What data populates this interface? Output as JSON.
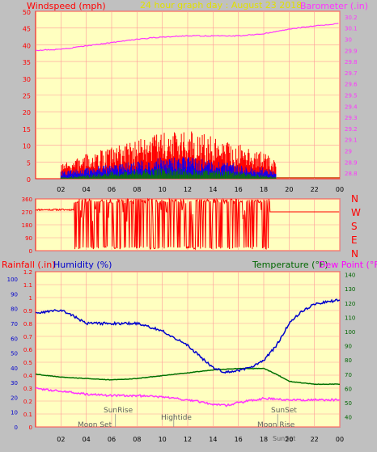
{
  "colors": {
    "bg": "#c0c0c0",
    "plot_bg": "#ffffc0",
    "grid": "#ff9999",
    "axis_frame": "#ff0000",
    "wind_gust": "#ff0000",
    "wind_avg": "#0000ff",
    "wind_low": "#008000",
    "barometer": "#ff33ff",
    "direction": "#ff0000",
    "humidity": "#0000cc",
    "temperature": "#007000",
    "dewpoint": "#ff33ff",
    "title": "#e0e000",
    "rain_label": "#ff0000",
    "humidity_label": "#0000cc",
    "temp_label": "#006600",
    "dew_label": "#ff00ff",
    "astro": "#606060"
  },
  "top": {
    "left_label": "Windspeed (mph)",
    "title": "24 hour graph day : August 23 2018",
    "right_label": "Barometer (.in)"
  },
  "middle": {
    "compass": [
      "N",
      "W",
      "S",
      "E",
      "N"
    ]
  },
  "bottom": {
    "rain_label": "Rainfall (.in)",
    "humidity_label": "Humidity (%)",
    "temp_label": "Temperature (°F)",
    "dew_label": "Dew Point (°F)"
  },
  "astro_events": {
    "moon_set_1": "Moon Set",
    "sunrise": "SunRise",
    "hightide": "Hightide",
    "sunset": "SunSet",
    "moon_rise": "Moon Rise",
    "sunset_2": "SunSet",
    "sunrise_hours": 6.3,
    "sunset_hours": 19.1,
    "hightide_hours": 10.9
  },
  "chart_data": [
    {
      "type": "line",
      "name": "wind-barometer",
      "x_ticks": [
        "02",
        "04",
        "06",
        "08",
        "10",
        "12",
        "14",
        "16",
        "18",
        "20",
        "22",
        "00"
      ],
      "y_left": {
        "label": "Windspeed (mph)",
        "ticks": [
          0,
          5,
          10,
          15,
          20,
          25,
          30,
          35,
          40,
          45,
          50
        ],
        "range": [
          0,
          50
        ]
      },
      "y_right": {
        "label": "Barometer (.in)",
        "ticks": [
          28.8,
          28.9,
          29,
          29.1,
          29.2,
          29.3,
          29.4,
          29.5,
          29.6,
          29.7,
          29.8,
          29.9,
          30,
          30.1,
          30.2
        ],
        "range": [
          28.75,
          30.25
        ]
      },
      "barometer": {
        "hours": [
          0,
          2,
          4,
          6,
          8,
          10,
          12,
          14,
          16,
          18,
          20,
          22,
          24
        ],
        "values": [
          29.9,
          29.91,
          29.94,
          29.97,
          30.0,
          30.02,
          30.03,
          30.03,
          30.03,
          30.05,
          30.09,
          30.12,
          30.14
        ]
      },
      "wind_gust_envelope": {
        "hours": [
          2,
          4,
          6,
          8,
          10,
          12,
          14,
          16,
          18,
          19
        ],
        "values": [
          4,
          7,
          9,
          11,
          13,
          14,
          12,
          10,
          8,
          5
        ]
      },
      "wind_avg_envelope": {
        "hours": [
          2,
          4,
          6,
          8,
          10,
          12,
          14,
          16,
          18,
          19
        ],
        "values": [
          2,
          3,
          4,
          5,
          6,
          6,
          5,
          4,
          3,
          2
        ]
      },
      "wind_low_envelope": {
        "hours": [
          2,
          4,
          6,
          8,
          10,
          12,
          14,
          16,
          18,
          19
        ],
        "values": [
          0.5,
          1,
          2,
          2.5,
          3,
          3,
          2.5,
          2,
          1,
          0.5
        ]
      }
    },
    {
      "type": "line",
      "name": "wind-direction",
      "y_ticks": [
        0,
        90,
        180,
        270,
        360
      ],
      "range": [
        0,
        360
      ],
      "baseline_direction": 270,
      "active_window_hours": [
        3,
        18.5
      ]
    },
    {
      "type": "line",
      "name": "humidity-temperature-dewpoint",
      "y_rain": {
        "label": "Rainfall (.in)",
        "ticks": [
          0,
          0.1,
          0.2,
          0.3,
          0.4,
          0.5,
          0.6,
          0.7,
          0.8,
          0.9,
          1,
          1.1,
          1.2
        ],
        "range": [
          0,
          1.2
        ]
      },
      "y_humidity": {
        "label": "Humidity (%)",
        "ticks": [
          0,
          10,
          20,
          30,
          40,
          50,
          60,
          70,
          80,
          90,
          100
        ],
        "range": [
          0,
          105
        ]
      },
      "y_temp": {
        "label": "Temperature (°F)",
        "ticks": [
          40,
          50,
          60,
          70,
          80,
          90,
          100,
          110,
          120,
          130,
          140
        ],
        "range": [
          33,
          142
        ]
      },
      "humidity": {
        "hours": [
          0,
          2,
          3,
          4,
          6,
          8,
          10,
          12,
          14,
          15,
          16,
          17,
          18,
          19,
          20,
          21,
          22,
          24
        ],
        "values": [
          77,
          79,
          75,
          70,
          70,
          70,
          65,
          55,
          40,
          37,
          38,
          40,
          45,
          55,
          70,
          78,
          83,
          86
        ]
      },
      "temperature": {
        "hours": [
          0,
          2,
          4,
          6,
          8,
          10,
          12,
          14,
          16,
          18,
          19,
          20,
          22,
          24
        ],
        "values": [
          70,
          68,
          67,
          66,
          67,
          69,
          71,
          73,
          74,
          74,
          70,
          65,
          63,
          63
        ]
      },
      "dewpoint": {
        "hours": [
          0,
          2,
          4,
          6,
          8,
          10,
          12,
          14,
          15,
          16,
          18,
          20,
          22,
          24
        ],
        "values": [
          60,
          58,
          56,
          55,
          55,
          54,
          52,
          49,
          48,
          50,
          53,
          52,
          52,
          52
        ]
      }
    }
  ]
}
